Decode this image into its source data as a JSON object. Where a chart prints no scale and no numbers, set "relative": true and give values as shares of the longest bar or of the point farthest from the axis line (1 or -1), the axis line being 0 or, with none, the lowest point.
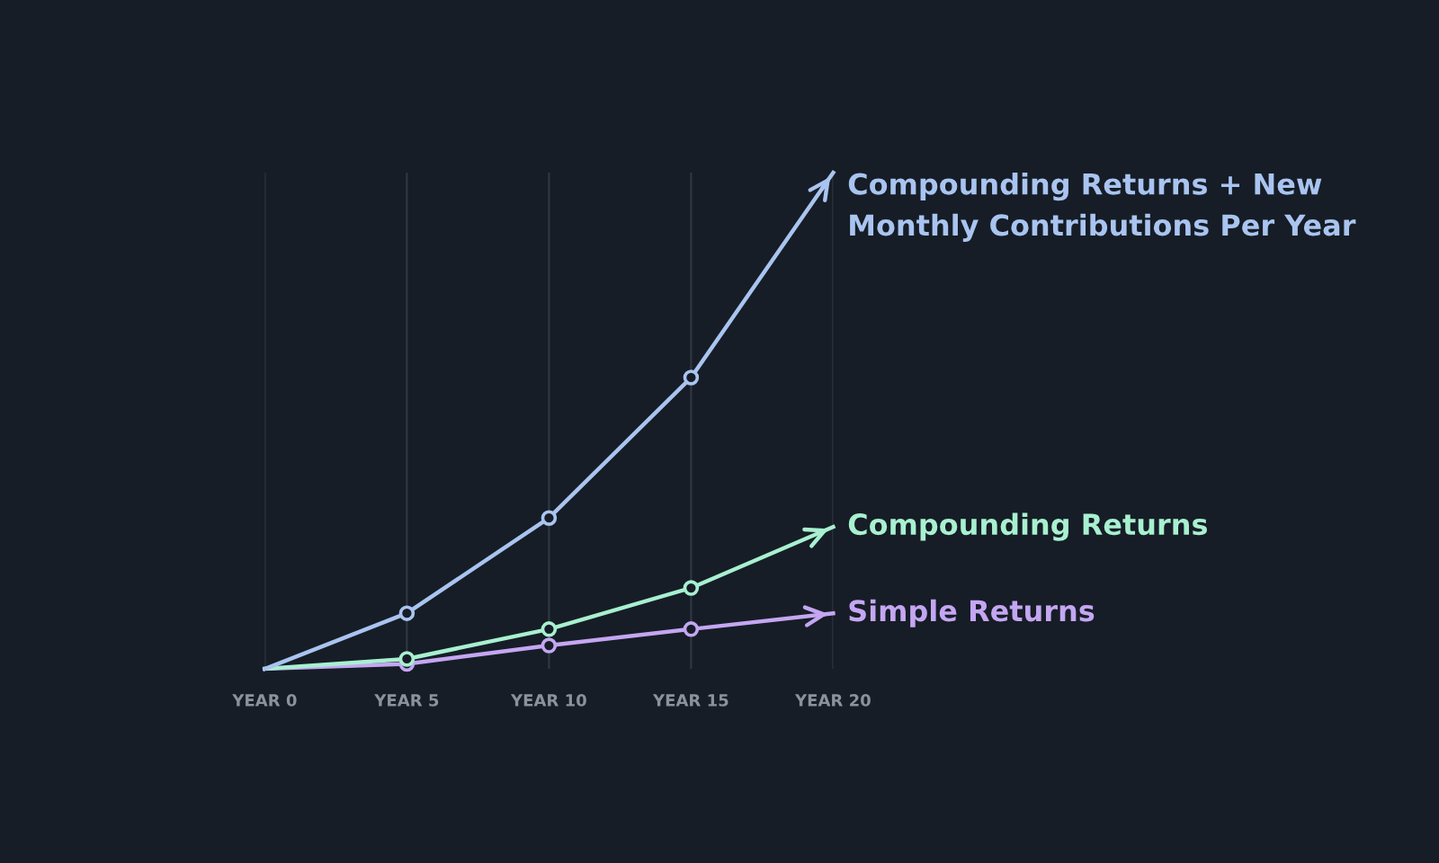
{
  "chart_data": {
    "type": "line",
    "relative": true,
    "categories": [
      "YEAR 0",
      "YEAR 5",
      "YEAR 10",
      "YEAR 15",
      "YEAR 20"
    ],
    "series": [
      {
        "name": "Compounding Returns + New Monthly Contributions Per Year",
        "color": "#a9c4f0",
        "values": [
          0,
          0.112,
          0.304,
          0.587,
          1
        ]
      },
      {
        "name": "Compounding Returns",
        "color": "#a8f0d0",
        "values": [
          0,
          0.02,
          0.08,
          0.163,
          0.286
        ]
      },
      {
        "name": "Simple Returns",
        "color": "#c4a6f2",
        "values": [
          0,
          0.01,
          0.047,
          0.08,
          0.112
        ]
      }
    ],
    "marker": "circle",
    "grid": "x",
    "legend": "right"
  }
}
